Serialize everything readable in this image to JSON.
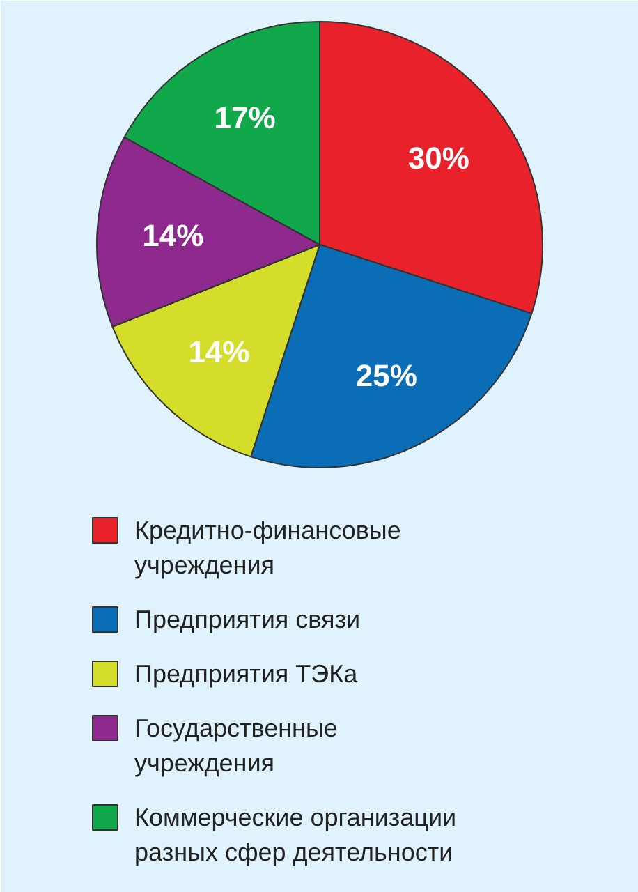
{
  "chart_data": {
    "type": "pie",
    "categories": [
      "Кредитно-финансовые учреждения",
      "Предприятия связи",
      "Предприятия ТЭКа",
      "Государственные учреждения",
      "Коммерческие организации разных сфер деятельности"
    ],
    "values": [
      30,
      25,
      14,
      14,
      17
    ],
    "colors": [
      "#e8212a",
      "#0a6db5",
      "#d4de2a",
      "#8e2a8e",
      "#10a84a"
    ],
    "value_labels": [
      "30%",
      "25%",
      "14%",
      "14%",
      "17%"
    ],
    "legend": "bottom"
  }
}
